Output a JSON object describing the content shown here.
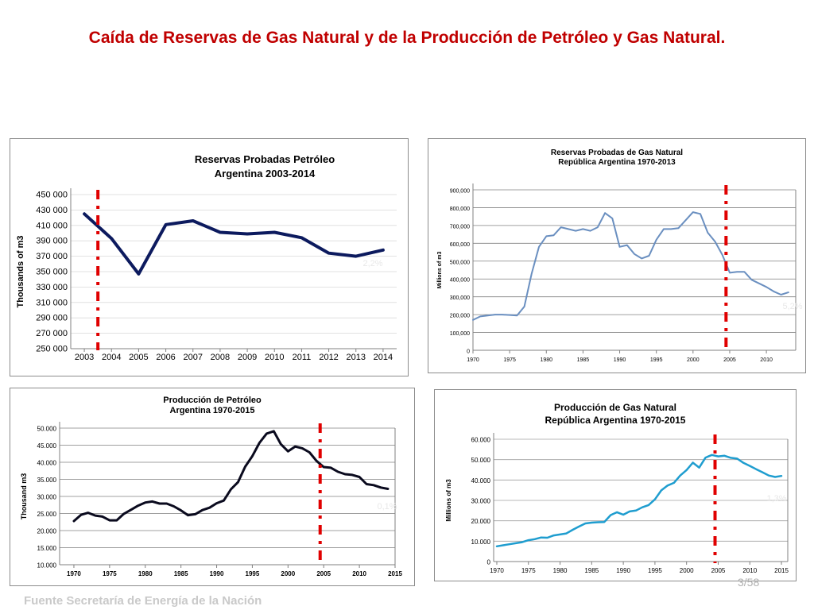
{
  "slide": {
    "title": "Caída de Reservas de Gas Natural y de la Producción de Petróleo y Gas Natural.",
    "footer": "Fuente Secretaría de Energía de la Nación",
    "page": "3/58"
  },
  "colors": {
    "title": "#c00000",
    "marker": "#e00000"
  },
  "chart_data": [
    {
      "type": "line",
      "title": [
        "Reservas Probadas Petróleo",
        "Argentina 2003-2014"
      ],
      "ylabel": "Thousands of m3",
      "xlabel": "",
      "x": [
        2003,
        2004,
        2005,
        2006,
        2007,
        2008,
        2009,
        2010,
        2011,
        2012,
        2013,
        2014
      ],
      "xticks": [
        "2003",
        "2004",
        "2005",
        "2006",
        "2007",
        "2008",
        "2009",
        "2010",
        "2011",
        "2012",
        "2013",
        "2014"
      ],
      "yticks": [
        "250 000",
        "270 000",
        "290 000",
        "310 000",
        "330 000",
        "350 000",
        "370 000",
        "390 000",
        "410 000",
        "430 000",
        "450 000"
      ],
      "ylim": [
        250000,
        450000
      ],
      "grid": true,
      "series": [
        {
          "values": [
            425000,
            393000,
            347000,
            411000,
            416000,
            401000,
            399000,
            401000,
            394000,
            374000,
            370000,
            378000
          ],
          "color": "#0c1a5e"
        }
      ],
      "marker_x": 2003.5,
      "annotation": "2,2%"
    },
    {
      "type": "line",
      "title": [
        "Reservas Probadas de Gas Natural",
        "República Argentina 1970-2013"
      ],
      "ylabel": "Millions of m3",
      "xlabel": "",
      "x": [
        1970,
        1971,
        1972,
        1973,
        1974,
        1975,
        1976,
        1977,
        1978,
        1979,
        1980,
        1981,
        1982,
        1983,
        1984,
        1985,
        1986,
        1987,
        1988,
        1989,
        1990,
        1991,
        1992,
        1993,
        1994,
        1995,
        1996,
        1997,
        1998,
        1999,
        2000,
        2001,
        2002,
        2003,
        2004,
        2005,
        2006,
        2007,
        2008,
        2009,
        2010,
        2011,
        2012,
        2013
      ],
      "xticks": [
        "1970",
        "1975",
        "1980",
        "1985",
        "1990",
        "1995",
        "2000",
        "2005",
        "2010"
      ],
      "yticks": [
        "0",
        "100,000",
        "200,000",
        "300,000",
        "400,000",
        "500,000",
        "600,000",
        "700,000",
        "800,000",
        "900,000"
      ],
      "ylim": [
        0,
        900000
      ],
      "grid": true,
      "series": [
        {
          "values": [
            170000,
            190000,
            195000,
            200000,
            200000,
            198000,
            195000,
            245000,
            430000,
            580000,
            640000,
            645000,
            690000,
            680000,
            670000,
            680000,
            670000,
            690000,
            770000,
            740000,
            580000,
            590000,
            540000,
            515000,
            530000,
            620000,
            680000,
            680000,
            685000,
            730000,
            775000,
            765000,
            660000,
            610000,
            535000,
            435000,
            440000,
            440000,
            395000,
            375000,
            355000,
            330000,
            312000,
            325000
          ],
          "color": "#6a8fc0"
        }
      ],
      "marker_x": 2004.5,
      "annotation": "5,2%"
    },
    {
      "type": "line",
      "title": [
        "Producción de Petróleo",
        "Argentina 1970-2015"
      ],
      "ylabel": "Thousand m3",
      "xlabel": "",
      "x": [
        1970,
        1971,
        1972,
        1973,
        1974,
        1975,
        1976,
        1977,
        1978,
        1979,
        1980,
        1981,
        1982,
        1983,
        1984,
        1985,
        1986,
        1987,
        1988,
        1989,
        1990,
        1991,
        1992,
        1993,
        1994,
        1995,
        1996,
        1997,
        1998,
        1999,
        2000,
        2001,
        2002,
        2003,
        2004,
        2005,
        2006,
        2007,
        2008,
        2009,
        2010,
        2011,
        2012,
        2013,
        2014
      ],
      "xticks": [
        "1970",
        "1975",
        "1980",
        "1985",
        "1990",
        "1995",
        "2000",
        "2005",
        "2010",
        "2015"
      ],
      "yticks": [
        "10.000",
        "15.000",
        "20.000",
        "25.000",
        "30.000",
        "35.000",
        "40.000",
        "45.000",
        "50.000"
      ],
      "ylim": [
        10000,
        50000
      ],
      "grid": true,
      "series": [
        {
          "values": [
            22800,
            24600,
            25200,
            24400,
            24100,
            23000,
            23000,
            24900,
            26100,
            27300,
            28200,
            28500,
            27900,
            27900,
            27100,
            25900,
            24500,
            24800,
            26000,
            26700,
            28000,
            28800,
            32100,
            34200,
            38700,
            41800,
            45700,
            48400,
            49100,
            45300,
            43200,
            44600,
            44100,
            42900,
            40400,
            38600,
            38400,
            37200,
            36500,
            36300,
            35700,
            33600,
            33300,
            32600,
            32200
          ],
          "color": "#0a0a1e"
        }
      ],
      "marker_x": 2004.5,
      "annotation": "0,1%"
    },
    {
      "type": "line",
      "title": [
        "Producción de Gas Natural",
        "República Argentina 1970-2015"
      ],
      "ylabel": "Millions of m3",
      "xlabel": "",
      "x": [
        1970,
        1971,
        1972,
        1973,
        1974,
        1975,
        1976,
        1977,
        1978,
        1979,
        1980,
        1981,
        1982,
        1983,
        1984,
        1985,
        1986,
        1987,
        1988,
        1989,
        1990,
        1991,
        1992,
        1993,
        1994,
        1995,
        1996,
        1997,
        1998,
        1999,
        2000,
        2001,
        2002,
        2003,
        2004,
        2005,
        2006,
        2007,
        2008,
        2009,
        2010,
        2011,
        2012,
        2013,
        2014,
        2015
      ],
      "xticks": [
        "1970",
        "1975",
        "1980",
        "1985",
        "1990",
        "1995",
        "2000",
        "2005",
        "2010",
        "2015"
      ],
      "yticks": [
        "0",
        "10.000",
        "20.000",
        "30.000",
        "40.000",
        "50.000",
        "60.000"
      ],
      "ylim": [
        0,
        60000
      ],
      "grid": true,
      "series": [
        {
          "values": [
            7500,
            8000,
            8500,
            9000,
            9500,
            10500,
            11000,
            11800,
            11700,
            12800,
            13300,
            13800,
            15600,
            17200,
            18700,
            19100,
            19300,
            19400,
            22800,
            24200,
            23000,
            24600,
            25000,
            26600,
            27700,
            30500,
            34900,
            37300,
            38600,
            42200,
            44900,
            48500,
            46100,
            51000,
            52300,
            51600,
            51900,
            50900,
            50500,
            48400,
            46900,
            45300,
            43800,
            42200,
            41500,
            42000
          ],
          "color": "#1f9dcf"
        }
      ],
      "marker_x": 2004.5,
      "annotation": "1,3%"
    }
  ]
}
